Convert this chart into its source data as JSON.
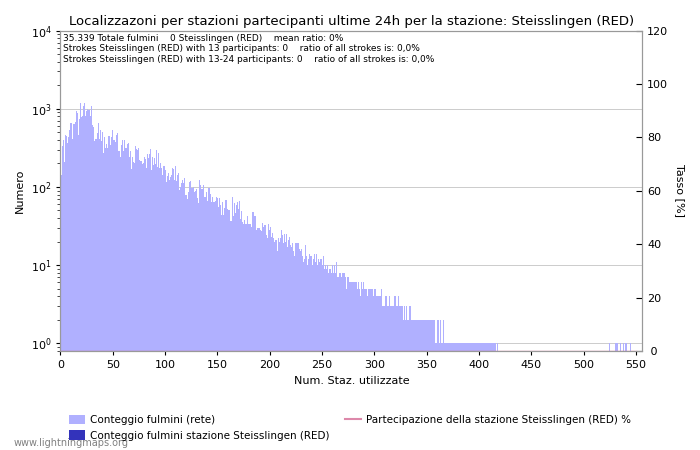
{
  "title": "Localizzazoni per stazioni partecipanti ultime 24h per la stazione: Steisslingen (RED)",
  "xlabel": "Num. Staz. utilizzate",
  "ylabel_left": "Numero",
  "ylabel_right": "Tasso [%]",
  "annotation_lines": [
    "35.339 Totale fulmini    0 Steisslingen (RED)    mean ratio: 0%",
    "Strokes Steisslingen (RED) with 13 participants: 0    ratio of all strokes is: 0,0%",
    "Strokes Steisslingen (RED) with 13-24 participants: 0    ratio of all strokes is: 0,0%"
  ],
  "bar_color_main": "#b0b0ff",
  "bar_color_station": "#3333bb",
  "line_color": "#dd88aa",
  "background_color": "#ffffff",
  "grid_color": "#cccccc",
  "xlim": [
    0,
    556
  ],
  "ylim_right": [
    0,
    120
  ],
  "legend_labels": [
    "Conteggio fulmini (rete)",
    "Conteggio fulmini stazione Steisslingen (RED)",
    "Partecipazione della stazione Steisslingen (RED) %"
  ],
  "watermark": "www.lightningmaps.org",
  "n_bins": 550
}
